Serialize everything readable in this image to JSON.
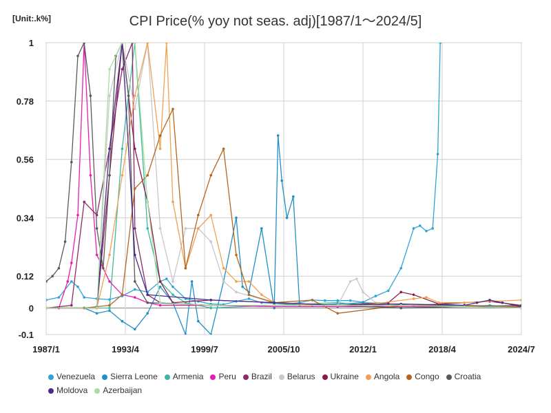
{
  "chart_data": {
    "type": "line",
    "title": "CPI Price(% yoy not seas. adj)[1987/1～2024/5]",
    "unit": "[Unit:.k%]",
    "xlim": [
      1987.0,
      2024.5
    ],
    "ylim": [
      -0.1,
      1
    ],
    "x_ticks": [
      "1987/1",
      "1993/4",
      "1999/7",
      "2005/10",
      "2012/1",
      "2018/4",
      "2024/7"
    ],
    "y_ticks": [
      "1",
      "0.78",
      "0.56",
      "0.34",
      "0.12",
      "0",
      "-0.1"
    ],
    "legend_position": "bottom",
    "series": [
      {
        "name": "Venezuela",
        "color": "#2ea3d6",
        "x": [
          1987,
          1988,
          1989,
          1989.5,
          1990,
          1991,
          1992,
          1993,
          1994,
          1995,
          1996,
          1996.5,
          1997,
          1998,
          1999,
          2000,
          2001,
          2002,
          2003,
          2004,
          2005,
          2006,
          2007,
          2008,
          2009,
          2010,
          2011,
          2012,
          2013,
          2014,
          2015,
          2016,
          2016.5,
          2017,
          2017.5,
          2017.9,
          2018.1
        ],
        "y": [
          0.03,
          0.04,
          0.1,
          0.08,
          0.04,
          0.035,
          0.032,
          0.045,
          0.07,
          0.06,
          0.1,
          0.11,
          0.08,
          0.035,
          0.025,
          0.015,
          0.013,
          0.025,
          0.035,
          0.02,
          0.017,
          0.015,
          0.02,
          0.03,
          0.028,
          0.028,
          0.028,
          0.022,
          0.045,
          0.065,
          0.15,
          0.3,
          0.31,
          0.29,
          0.3,
          0.58,
          1.0
        ]
      },
      {
        "name": "Sierra Leone",
        "color": "#1f8fc7",
        "x": [
          1987,
          1990,
          1991,
          1992,
          1993,
          1994,
          1995,
          1996,
          1997,
          1998,
          1998.5,
          1999,
          2000,
          2001,
          2002,
          2002.5,
          2003,
          2004,
          2005,
          2005.3,
          2005.6,
          2006,
          2006.5,
          2007,
          2008,
          2010,
          2012,
          2014,
          2016,
          2018,
          2020,
          2022,
          2024.5
        ],
        "y": [
          0.0,
          0.0,
          -0.02,
          -0.01,
          -0.05,
          -0.08,
          -0.02,
          0.08,
          0.02,
          -0.1,
          0.1,
          -0.05,
          -0.1,
          0.1,
          0.34,
          0.08,
          0.06,
          0.3,
          0.0,
          0.65,
          0.48,
          0.34,
          0.42,
          0.01,
          0.01,
          0.015,
          0.02,
          0.015,
          0.01,
          0.015,
          0.01,
          0.005,
          0.0
        ]
      },
      {
        "name": "Armenia",
        "color": "#3cb8a0",
        "x": [
          1987,
          1990,
          1992,
          1993,
          1994,
          1995,
          1996,
          1997,
          1998,
          2000,
          2005,
          2010,
          2015,
          2020,
          2022,
          2024.5
        ],
        "y": [
          0.0,
          0.0,
          0.0,
          0.6,
          1.0,
          0.3,
          0.1,
          0.05,
          0.02,
          0.0,
          0.01,
          0.02,
          0.0,
          0.005,
          0.01,
          0.0
        ]
      },
      {
        "name": "Peru",
        "color": "#e81cb0",
        "x": [
          1987,
          1988,
          1988.7,
          1989,
          1989.5,
          1990,
          1990.5,
          1991,
          1992,
          1993,
          1994,
          1995,
          1996,
          2000,
          2005,
          2010,
          2015,
          2020,
          2024.5
        ],
        "y": [
          0.0,
          0.0,
          0.1,
          0.17,
          0.35,
          1.0,
          0.5,
          0.2,
          0.1,
          0.05,
          0.04,
          0.02,
          0.01,
          0.01,
          0.005,
          0.005,
          0.005,
          0.005,
          0.003
        ]
      },
      {
        "name": "Brazil",
        "color": "#8c2a6b",
        "x": [
          1987,
          1989,
          1990,
          1991,
          1992,
          1993,
          1993.8,
          1994,
          1995,
          1996,
          2000,
          2005,
          2010,
          2015,
          2020,
          2024.5
        ],
        "y": [
          0.0,
          0.01,
          0.4,
          0.35,
          0.6,
          0.9,
          1.0,
          0.3,
          0.05,
          0.02,
          0.01,
          0.01,
          0.01,
          0.01,
          0.005,
          0.004
        ]
      },
      {
        "name": "Belarus",
        "color": "#c8c8cc",
        "x": [
          1987,
          1991,
          1992,
          1993,
          1994,
          1995,
          1996,
          1997,
          1998,
          1999,
          2000,
          2001,
          2002,
          2005,
          2008,
          2010,
          2011,
          2011.5,
          2012,
          2013,
          2015,
          2020,
          2024.5
        ],
        "y": [
          0.0,
          0.0,
          0.8,
          1.0,
          0.75,
          1.0,
          0.3,
          0.1,
          0.3,
          0.3,
          0.25,
          0.1,
          0.06,
          0.02,
          0.015,
          0.01,
          0.1,
          0.11,
          0.06,
          0.02,
          0.015,
          0.005,
          0.005
        ]
      },
      {
        "name": "Ukraine",
        "color": "#8a1a4a",
        "x": [
          1987,
          1991,
          1992,
          1993,
          1994,
          1995,
          1996,
          1997,
          2000,
          2005,
          2010,
          2014,
          2015,
          2016,
          2018,
          2022,
          2024.5
        ],
        "y": [
          0.0,
          0.0,
          0.5,
          1.0,
          0.6,
          0.4,
          0.1,
          0.02,
          0.03,
          0.02,
          0.01,
          0.02,
          0.06,
          0.05,
          0.015,
          0.025,
          0.01
        ]
      },
      {
        "name": "Angola",
        "color": "#f0a050",
        "x": [
          1987,
          1991,
          1992,
          1993,
          1994,
          1995,
          1996,
          1996.5,
          1997,
          1998,
          1999,
          2000,
          2001,
          2002,
          2003,
          2004,
          2005,
          2008,
          2012,
          2016,
          2017,
          2018,
          2020,
          2024.5
        ],
        "y": [
          0.0,
          0.0,
          0.2,
          0.5,
          0.8,
          1.0,
          0.6,
          1.0,
          0.4,
          0.15,
          0.3,
          0.35,
          0.15,
          0.1,
          0.1,
          0.05,
          0.02,
          0.012,
          0.01,
          0.035,
          0.04,
          0.02,
          0.02,
          0.03
        ]
      },
      {
        "name": "Congo",
        "color": "#b5651d",
        "x": [
          1987,
          1990,
          1991,
          1992,
          1993,
          1994,
          1995,
          1996,
          1997,
          1998,
          1999,
          2000,
          2001,
          2002,
          2003,
          2005,
          2008,
          2010,
          2015,
          2020,
          2024.5
        ],
        "y": [
          0.0,
          0.0,
          0.005,
          0.01,
          0.05,
          0.45,
          0.5,
          0.65,
          0.75,
          0.15,
          0.35,
          0.5,
          0.6,
          0.2,
          0.05,
          0.02,
          0.03,
          -0.02,
          0.01,
          0.01,
          0.005
        ]
      },
      {
        "name": "Croatia",
        "color": "#5a5a5a",
        "x": [
          1987,
          1987.5,
          1988,
          1988.5,
          1989,
          1989.5,
          1990,
          1990.5,
          1991,
          1991.5,
          1992,
          1992.5,
          1993,
          1993.5,
          1994,
          1995,
          2000,
          2005,
          2010,
          2015,
          2020,
          2024.5
        ],
        "y": [
          0.1,
          0.12,
          0.15,
          0.25,
          0.55,
          0.95,
          1.0,
          0.8,
          0.3,
          0.15,
          0.5,
          0.95,
          1.0,
          0.8,
          0.1,
          0.02,
          0.01,
          0.01,
          0.01,
          0.0,
          0.005,
          0.01
        ]
      },
      {
        "name": "Moldova",
        "color": "#4a2a8a",
        "x": [
          1987,
          1991,
          1992,
          1993,
          1994,
          1995,
          2000,
          2005,
          2010,
          2015,
          2020,
          2021,
          2022,
          2023,
          2024.5
        ],
        "y": [
          0.0,
          0.0,
          0.6,
          1.0,
          0.2,
          0.05,
          0.03,
          0.02,
          0.01,
          0.015,
          0.01,
          0.02,
          0.03,
          0.02,
          0.005
        ]
      },
      {
        "name": "Azerbaijan",
        "color": "#a8dca0",
        "x": [
          1987,
          1991,
          1992,
          1993,
          1994,
          1995,
          1996,
          2000,
          2005,
          2010,
          2015,
          2020,
          2024.5
        ],
        "y": [
          0.0,
          0.0,
          0.9,
          1.0,
          1.0,
          0.4,
          0.02,
          0.01,
          0.01,
          0.01,
          0.01,
          0.005,
          0.0
        ]
      }
    ]
  }
}
